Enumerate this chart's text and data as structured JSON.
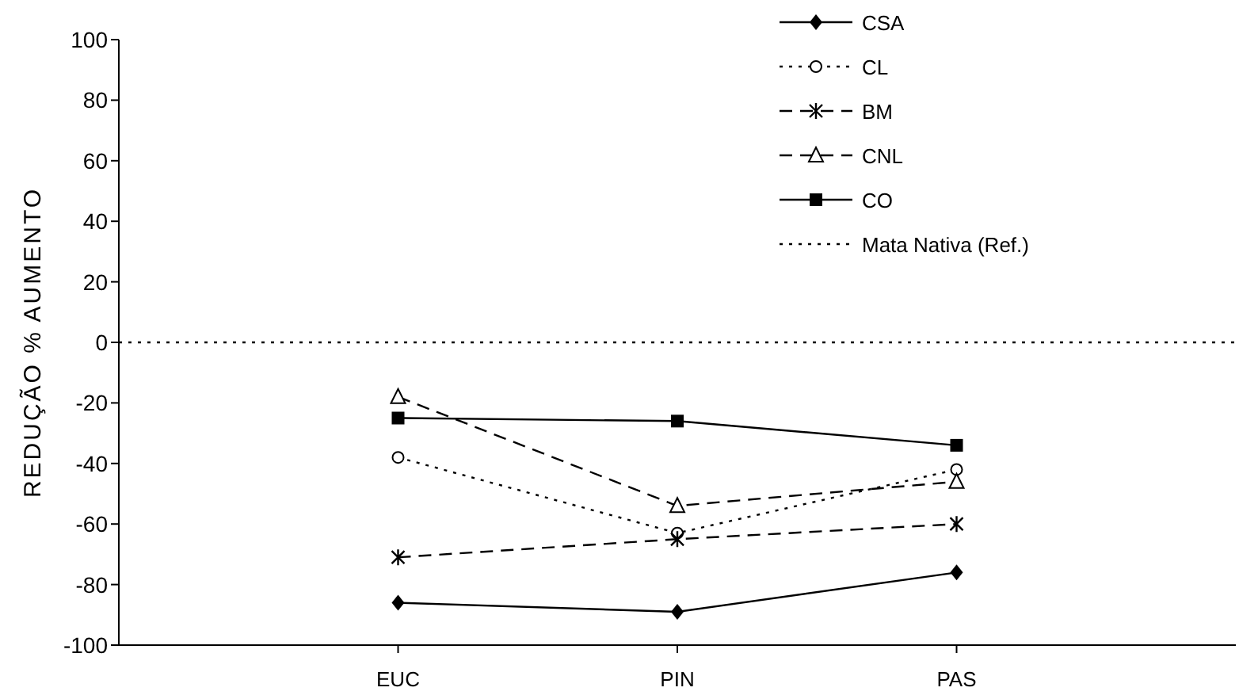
{
  "chart_data": {
    "type": "line",
    "ylabel": "REDUÇÃO     %     AUMENTO",
    "categories": [
      null,
      "EUC",
      "PIN",
      "PAS",
      null
    ],
    "series": [
      {
        "name": "CSA",
        "color": "#000000",
        "marker": "diamond",
        "line_style": "solid",
        "values": [
          null,
          -86,
          -89,
          -76,
          null
        ]
      },
      {
        "name": "CL",
        "color": "#000000",
        "marker": "circle",
        "line_style": "dotted",
        "values": [
          null,
          -38,
          -63,
          -42,
          null
        ]
      },
      {
        "name": "BM",
        "color": "#000000",
        "marker": "cross",
        "line_style": "dashed",
        "values": [
          null,
          -71,
          -65,
          -60,
          null
        ]
      },
      {
        "name": "CNL",
        "color": "#000000",
        "marker": "triangle",
        "line_style": "dashed",
        "values": [
          null,
          -18,
          -54,
          -46,
          null
        ]
      },
      {
        "name": "CO",
        "color": "#000000",
        "marker": "square",
        "line_style": "solid",
        "values": [
          null,
          -25,
          -26,
          -34,
          null
        ]
      },
      {
        "name": "Mata Nativa (Ref.)",
        "color": "#000000",
        "marker": "none",
        "line_style": "dotted",
        "values": [
          0,
          0,
          0,
          0,
          0
        ]
      }
    ],
    "ylim": [
      -100,
      100
    ],
    "yticks": [
      -100,
      -80,
      -60,
      -40,
      -20,
      0,
      20,
      40,
      60,
      80,
      100
    ],
    "grid": false,
    "legend": "top right"
  }
}
